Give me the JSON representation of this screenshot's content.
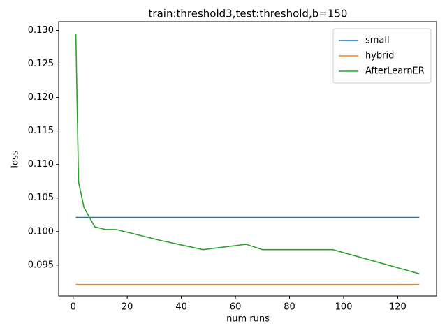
{
  "chart_data": {
    "type": "line",
    "title": "train:threshold3,test:threshold,b=150",
    "x_label": "num runs",
    "y_label": "loss",
    "x": [
      1,
      2,
      4,
      8,
      12,
      16,
      32,
      48,
      64,
      70,
      96,
      128
    ],
    "series": [
      {
        "name": "small",
        "color": "#1f77b4",
        "values": [
          0.1021,
          0.1021,
          0.1021,
          0.1021,
          0.1021,
          0.1021,
          0.1021,
          0.1021,
          0.1021,
          0.1021,
          0.1021,
          0.1021
        ]
      },
      {
        "name": "hybrid",
        "color": "#ff7f0e",
        "values": [
          0.0921,
          0.0921,
          0.0921,
          0.0921,
          0.0921,
          0.0921,
          0.0921,
          0.0921,
          0.0921,
          0.0921,
          0.0921,
          0.0921
        ]
      },
      {
        "name": "AfterLearnER",
        "color": "#2ca02c",
        "values": [
          0.1295,
          0.1074,
          0.1036,
          0.1007,
          0.1003,
          0.1003,
          0.0987,
          0.0973,
          0.0981,
          0.0973,
          0.0973,
          0.0937
        ]
      }
    ],
    "xlim": [
      -5.35,
      134.35
    ],
    "ylim": [
      0.0904,
      0.1313
    ],
    "xticks": [
      0,
      20,
      40,
      60,
      80,
      100,
      120
    ],
    "yticks": [
      0.095,
      {
        "value": 0.1,
        "label": "0.100"
      },
      0.105,
      {
        "value": 0.11,
        "label": "0.110"
      },
      0.115,
      {
        "value": 0.12,
        "label": "0.120"
      },
      0.125,
      {
        "value": 0.13,
        "label": "0.130"
      }
    ],
    "legend": "upper right",
    "grid": false
  }
}
